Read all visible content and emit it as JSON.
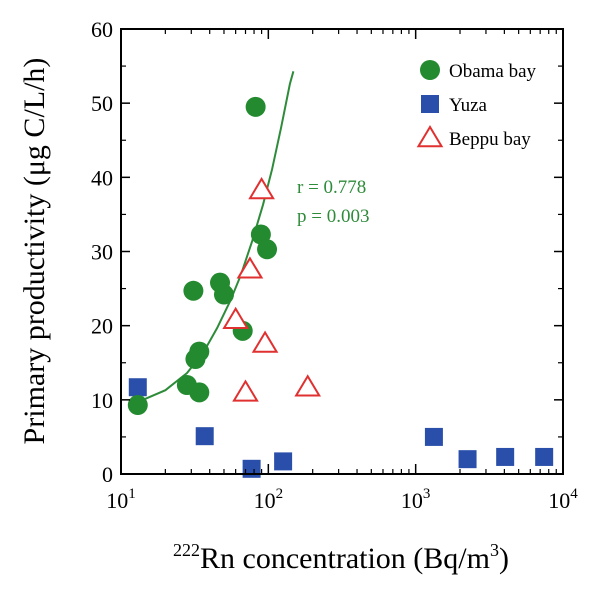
{
  "chart_data": {
    "type": "scatter",
    "title": "",
    "xlabel": {
      "sup": "222",
      "text": "Rn concentration (Bq/m",
      "sup2": "3",
      "close": ")"
    },
    "ylabel": "Primary productivity (μg C/L/h)",
    "xscale": "log",
    "xlim": [
      10,
      10000
    ],
    "ylim": [
      0,
      60
    ],
    "grid": false,
    "legend_position": "top-right",
    "y_ticks": [
      "0",
      "10",
      "20",
      "30",
      "40",
      "50",
      "60"
    ],
    "x_ticks": [
      {
        "value": 10,
        "base": "10",
        "exp": "1"
      },
      {
        "value": 100,
        "base": "10",
        "exp": "2"
      },
      {
        "value": 1000,
        "base": "10",
        "exp": "3"
      },
      {
        "value": 10000,
        "base": "10",
        "exp": "4"
      }
    ],
    "series": [
      {
        "name": "Obama bay",
        "marker": "circle",
        "color": "#238a2f",
        "points": [
          {
            "x": 13,
            "y": 9.3
          },
          {
            "x": 28,
            "y": 12
          },
          {
            "x": 32,
            "y": 15.5
          },
          {
            "x": 34,
            "y": 16.5
          },
          {
            "x": 34,
            "y": 11
          },
          {
            "x": 31,
            "y": 24.7
          },
          {
            "x": 47,
            "y": 25.8
          },
          {
            "x": 50,
            "y": 24.2
          },
          {
            "x": 67,
            "y": 19.3
          },
          {
            "x": 82,
            "y": 49.5
          },
          {
            "x": 89,
            "y": 32.3
          },
          {
            "x": 98,
            "y": 30.3
          }
        ]
      },
      {
        "name": "Yuza",
        "marker": "square",
        "color": "#2a4faa",
        "points": [
          {
            "x": 13,
            "y": 11.7
          },
          {
            "x": 37,
            "y": 5.1
          },
          {
            "x": 77,
            "y": 0.7
          },
          {
            "x": 126,
            "y": 1.7
          },
          {
            "x": 1330,
            "y": 5.0
          },
          {
            "x": 2250,
            "y": 2.0
          },
          {
            "x": 4050,
            "y": 2.3
          },
          {
            "x": 7450,
            "y": 2.3
          }
        ]
      },
      {
        "name": "Beppu bay",
        "marker": "triangle-open",
        "color": "#e03030",
        "points": [
          {
            "x": 90,
            "y": 38.3
          },
          {
            "x": 75,
            "y": 27.6
          },
          {
            "x": 60,
            "y": 20.8
          },
          {
            "x": 95,
            "y": 17.6
          },
          {
            "x": 70,
            "y": 11.0
          },
          {
            "x": 185,
            "y": 11.7
          }
        ]
      }
    ],
    "fit_curve": {
      "series": "Obama bay",
      "color": "#2e8b3a",
      "points": [
        {
          "x": 13,
          "y": 9.7
        },
        {
          "x": 20,
          "y": 11.3
        },
        {
          "x": 28,
          "y": 13.6
        },
        {
          "x": 36,
          "y": 16.3
        },
        {
          "x": 45,
          "y": 19.7
        },
        {
          "x": 55,
          "y": 23.3
        },
        {
          "x": 65,
          "y": 26.8
        },
        {
          "x": 78,
          "y": 31.5
        },
        {
          "x": 92,
          "y": 36.3
        },
        {
          "x": 106,
          "y": 41.1
        },
        {
          "x": 122,
          "y": 46.7
        },
        {
          "x": 140,
          "y": 52.6
        },
        {
          "x": 148,
          "y": 54.3
        }
      ]
    },
    "annotations": {
      "r": "r = 0.778",
      "p": "p = 0.003"
    }
  }
}
